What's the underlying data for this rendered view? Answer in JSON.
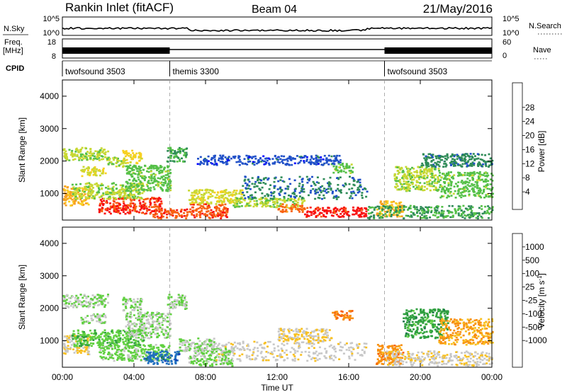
{
  "header": {
    "station": "Rankin Inlet (fitACF)",
    "beam": "Beam 04",
    "date": "21/May/2016"
  },
  "panels": {
    "nsky": {
      "label": "N.Sky",
      "right_label": "N.Search",
      "tick_top": "10^5",
      "tick_bottom": "10^0",
      "rtick_top": "10^5",
      "rtick_bottom": "10^0"
    },
    "freq": {
      "label_top": "Freq.",
      "label_bottom": "[MHz]",
      "tick_top": "18",
      "tick_bottom": "8",
      "right_label": "Nave",
      "rtick_top": "60",
      "rtick_bottom": "0"
    },
    "cpid": {
      "label": "CPID",
      "segments": [
        {
          "label": "twofsound 3503",
          "start": 0,
          "end": 6
        },
        {
          "label": "themis 3300",
          "start": 6,
          "end": 18
        },
        {
          "label": "twofsound 3503",
          "start": 18,
          "end": 24
        }
      ]
    }
  },
  "axes": {
    "x_ticks": [
      "00:00",
      "04:00",
      "08:00",
      "12:00",
      "16:00",
      "20:00",
      "00:00"
    ],
    "x_label": "Time UT",
    "y_label": "Slant Range [km]",
    "y_ticks": [
      "1000",
      "2000",
      "3000",
      "4000"
    ]
  },
  "colorbars": {
    "power": {
      "label": "Power [dB]",
      "ticks": [
        "4",
        "8",
        "12",
        "16",
        "20",
        "24",
        "28"
      ],
      "colors": [
        "#0000ff",
        "#2050c8",
        "#2e8b57",
        "#55c048",
        "#c8d832",
        "#f8d020",
        "#f8a020",
        "#f86010",
        "#f81010"
      ]
    },
    "velocity": {
      "label": "Velocity [m s-1]",
      "label_main": "Velocity [m s",
      "label_sup": "-1",
      "label_end": "]",
      "ticks": [
        "1000",
        "500",
        "100",
        "25",
        "-25",
        "-100",
        "-500",
        "-1000"
      ],
      "colors": [
        "#1030b0",
        "#2070c0",
        "#207850",
        "#30a040",
        "#60d040",
        "#c8c8c8",
        "#f8c020",
        "#f89010",
        "#f86010",
        "#f82010"
      ]
    }
  },
  "chart_data": [
    {
      "type": "heatmap",
      "name": "Power",
      "x_range": [
        0,
        24
      ],
      "ylim": [
        180,
        4500
      ],
      "clim": [
        0,
        30
      ],
      "blobs": [
        {
          "t0": 0.0,
          "t1": 1.5,
          "r0": 650,
          "r1": 1250,
          "v": 20
        },
        {
          "t0": 0.0,
          "t1": 2.5,
          "r0": 2050,
          "r1": 2450,
          "v": 14
        },
        {
          "t0": 1.0,
          "t1": 2.4,
          "r0": 1550,
          "r1": 1850,
          "v": 16
        },
        {
          "t0": 2.5,
          "t1": 3.4,
          "r0": 1850,
          "r1": 2150,
          "v": 14
        },
        {
          "t0": 3.3,
          "t1": 4.4,
          "r0": 1950,
          "r1": 2350,
          "v": 18
        },
        {
          "t0": 2.0,
          "t1": 5.5,
          "r0": 400,
          "r1": 900,
          "v": 27
        },
        {
          "t0": 0.5,
          "t1": 4.5,
          "r0": 850,
          "r1": 1350,
          "v": 14
        },
        {
          "t0": 3.5,
          "t1": 6.0,
          "r0": 1100,
          "r1": 1900,
          "v": 12
        },
        {
          "t0": 5.8,
          "t1": 6.9,
          "r0": 2000,
          "r1": 2450,
          "v": 10
        },
        {
          "t0": 5.0,
          "t1": 7.0,
          "r0": 250,
          "r1": 550,
          "v": 26
        },
        {
          "t0": 7.0,
          "t1": 9.2,
          "r0": 250,
          "r1": 700,
          "v": 26
        },
        {
          "t0": 7.0,
          "t1": 10.0,
          "r0": 700,
          "r1": 1150,
          "v": 16
        },
        {
          "t0": 9.5,
          "t1": 13.5,
          "r0": 600,
          "r1": 900,
          "v": 14
        },
        {
          "t0": 12.0,
          "t1": 13.5,
          "r0": 450,
          "r1": 700,
          "v": 24
        },
        {
          "t0": 13.5,
          "t1": 17.0,
          "r0": 300,
          "r1": 600,
          "v": 28
        },
        {
          "t0": 15.0,
          "t1": 16.2,
          "r0": 1650,
          "r1": 1950,
          "v": 12
        },
        {
          "t0": 10.0,
          "t1": 17.0,
          "r0": 850,
          "r1": 1550,
          "v": 7
        },
        {
          "t0": 7.5,
          "t1": 15.5,
          "r0": 1900,
          "r1": 2200,
          "v": 5
        },
        {
          "t0": 17.5,
          "t1": 19.0,
          "r0": 300,
          "r1": 800,
          "v": 20
        },
        {
          "t0": 18.5,
          "t1": 21.0,
          "r0": 1100,
          "r1": 1850,
          "v": 14
        },
        {
          "t0": 21.0,
          "t1": 24.0,
          "r0": 900,
          "r1": 1700,
          "v": 12
        },
        {
          "t0": 20.0,
          "t1": 24.0,
          "r0": 1850,
          "r1": 2250,
          "v": 8
        },
        {
          "t0": 17.0,
          "t1": 24.0,
          "r0": 250,
          "r1": 650,
          "v": 10
        }
      ]
    },
    {
      "type": "heatmap",
      "name": "Velocity",
      "x_range": [
        0,
        24
      ],
      "ylim": [
        180,
        4500
      ],
      "clim": [
        -1000,
        1000
      ],
      "blobs": [
        {
          "t0": 0.0,
          "t1": 1.5,
          "r0": 600,
          "r1": 1200,
          "v": -200
        },
        {
          "t0": 0.0,
          "t1": 2.5,
          "r0": 2050,
          "r1": 2450,
          "v": 0
        },
        {
          "t0": 1.0,
          "t1": 2.4,
          "r0": 1550,
          "r1": 1850,
          "v": 0
        },
        {
          "t0": 3.3,
          "t1": 4.4,
          "r0": 1950,
          "r1": 2350,
          "v": 0
        },
        {
          "t0": 2.0,
          "t1": 6.0,
          "r0": 400,
          "r1": 900,
          "v": 80
        },
        {
          "t0": 0.5,
          "t1": 4.5,
          "r0": 850,
          "r1": 1350,
          "v": 150
        },
        {
          "t0": 3.5,
          "t1": 6.0,
          "r0": 1100,
          "r1": 1900,
          "v": 0
        },
        {
          "t0": 5.8,
          "t1": 6.9,
          "r0": 2000,
          "r1": 2450,
          "v": 0
        },
        {
          "t0": 4.5,
          "t1": 6.5,
          "r0": 300,
          "r1": 700,
          "v": 700
        },
        {
          "t0": 7.0,
          "t1": 9.5,
          "r0": 250,
          "r1": 800,
          "v": 60
        },
        {
          "t0": 6.5,
          "t1": 8.5,
          "r0": 700,
          "r1": 1100,
          "v": 0
        },
        {
          "t0": 8.5,
          "t1": 17.0,
          "r0": 400,
          "r1": 1000,
          "v": -120
        },
        {
          "t0": 12.0,
          "t1": 15.0,
          "r0": 1000,
          "r1": 1400,
          "v": -200
        },
        {
          "t0": 15.0,
          "t1": 16.2,
          "r0": 1650,
          "r1": 1950,
          "v": -550
        },
        {
          "t0": 17.5,
          "t1": 19.0,
          "r0": 300,
          "r1": 900,
          "v": -500
        },
        {
          "t0": 19.0,
          "t1": 21.5,
          "r0": 1100,
          "r1": 2000,
          "v": 300
        },
        {
          "t0": 21.0,
          "t1": 24.0,
          "r0": 900,
          "r1": 1700,
          "v": -400
        },
        {
          "t0": 18.0,
          "t1": 24.0,
          "r0": 250,
          "r1": 700,
          "v": -150
        }
      ]
    }
  ]
}
